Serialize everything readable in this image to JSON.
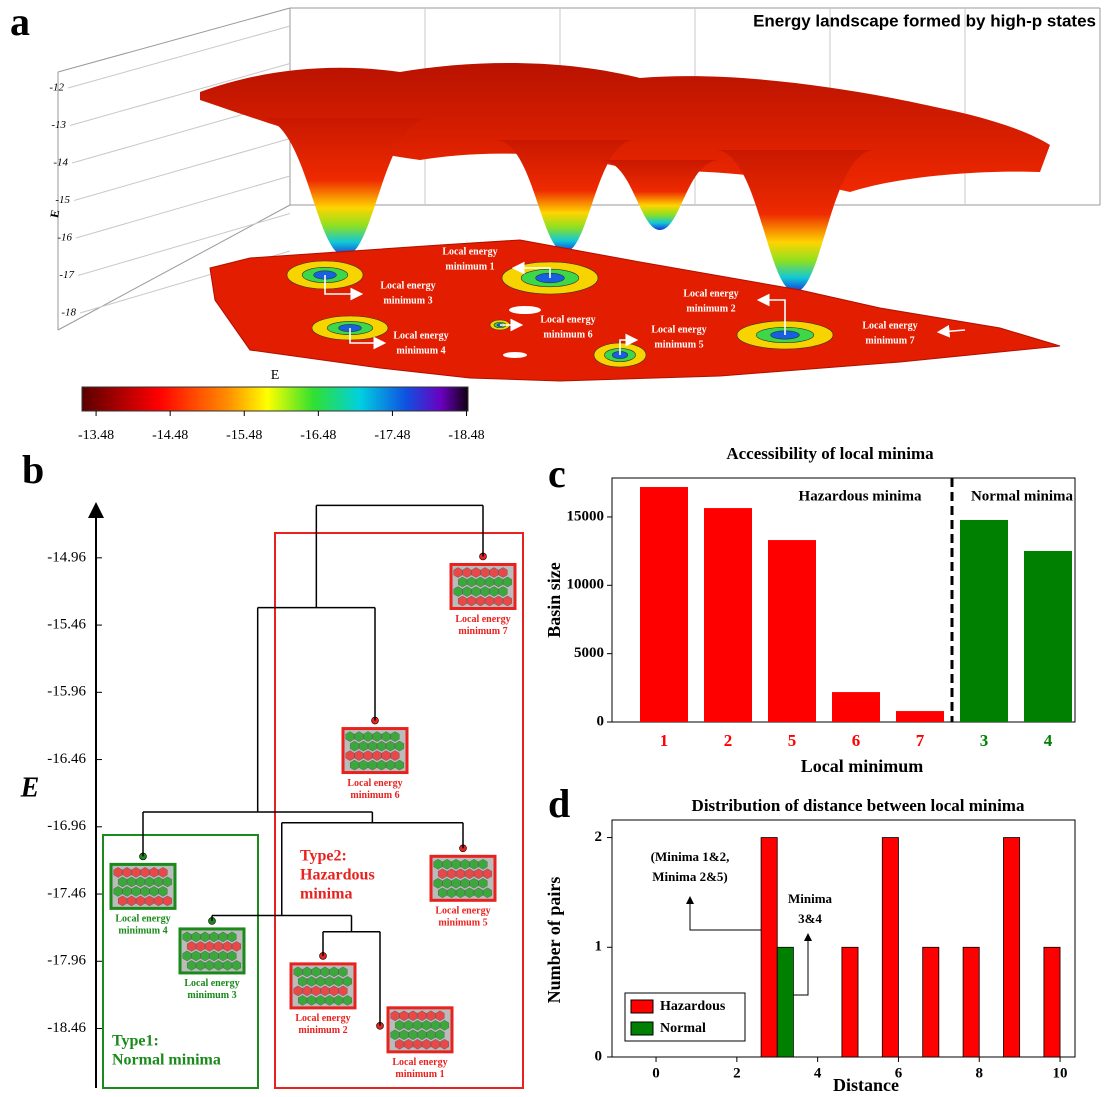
{
  "chart_data": [
    {
      "panel": "a",
      "type": "surface",
      "title": "Energy landscape formed by high-p states",
      "zlabel": "E",
      "zlim": [
        -18,
        -12
      ],
      "zticks": [
        -12,
        -13,
        -14,
        -15,
        -16,
        -17,
        -18
      ],
      "colorbar": {
        "label": "E",
        "lim": [
          -13.29,
          -18.5
        ],
        "ticks": [
          -13.48,
          -14.48,
          -15.48,
          -16.48,
          -17.48,
          -18.48
        ]
      },
      "annotations": [
        [
          "Local energy",
          "minimum 1"
        ],
        [
          "Local energy",
          "minimum 3"
        ],
        [
          "Local energy",
          "minimum 4"
        ],
        [
          "Local energy",
          "minimum 6"
        ],
        [
          "Local energy",
          "minimum 5"
        ],
        [
          "Local energy",
          "minimum 2"
        ],
        [
          "Local energy",
          "minimum 7"
        ]
      ]
    },
    {
      "panel": "b",
      "type": "dendrogram",
      "ylabel": "E",
      "ylim": [
        -18.88,
        -14.53
      ],
      "yticks": [
        -14.96,
        -15.46,
        -15.96,
        -16.46,
        -16.96,
        -17.46,
        -17.96,
        -18.46
      ],
      "groups": [
        {
          "label": [
            "Type1:",
            "Normal minima"
          ],
          "color": "#1a8a1a"
        },
        {
          "label": [
            "Type2:",
            "Hazardous",
            "minima"
          ],
          "color": "#e8231f"
        }
      ],
      "tree": {
        "e": -14.57,
        "children": [
          {
            "e": -15.33,
            "children": [
              {
                "e": -16.85,
                "children": [
                  {
                    "label": [
                      "Local energy",
                      "minimum 4"
                    ],
                    "e": -17.18,
                    "color": "#1a8a1a"
                  },
                  {
                    "e": -16.93,
                    "children": [
                      {
                        "e": -17.62,
                        "children": [
                          {
                            "label": [
                              "Local energy",
                              "minimum 3"
                            ],
                            "e": -17.66,
                            "color": "#1a8a1a"
                          },
                          {
                            "e": -17.74,
                            "children": [
                              {
                                "label": [
                                  "Local energy",
                                  "minimum 2"
                                ],
                                "e": -17.92,
                                "color": "#e8231f"
                              },
                              {
                                "label": [
                                  "Local energy",
                                  "minimum 1"
                                ],
                                "e": -18.44,
                                "color": "#e8231f"
                              }
                            ]
                          }
                        ]
                      },
                      {
                        "label": [
                          "Local energy",
                          "minimum 5"
                        ],
                        "e": -17.12,
                        "color": "#e8231f"
                      }
                    ]
                  }
                ]
              },
              {
                "label": [
                  "Local energy",
                  "minimum 6"
                ],
                "e": -16.17,
                "color": "#e8231f"
              }
            ]
          },
          {
            "label": [
              "Local energy",
              "minimum 7"
            ],
            "e": -14.95,
            "color": "#e8231f"
          }
        ]
      }
    },
    {
      "panel": "c",
      "type": "bar",
      "title": "Accessibility of local minima",
      "xlabel": "Local minimum",
      "ylabel": "Basin size",
      "categories": [
        "1",
        "2",
        "5",
        "6",
        "7",
        "3",
        "4"
      ],
      "values": [
        17190,
        15650,
        13310,
        2190,
        800,
        14780,
        12510
      ],
      "colors": [
        "#ff0000",
        "#ff0000",
        "#ff0000",
        "#ff0000",
        "#ff0000",
        "#008000",
        "#008000"
      ],
      "ylim": [
        0,
        17850
      ],
      "yticks": [
        0,
        5000,
        10000,
        15000
      ],
      "annotations": [
        "Hazardous minima",
        "Normal minima"
      ]
    },
    {
      "panel": "d",
      "type": "grouped-bar",
      "title": "Distribution of distance between local minima",
      "xlabel": "Distance",
      "ylabel": "Number of pairs",
      "x": [
        3,
        5,
        6,
        7,
        8,
        9,
        10
      ],
      "series": [
        {
          "name": "Hazardous",
          "color": "#ff0000",
          "values": [
            2,
            1,
            2,
            1,
            1,
            2,
            1
          ]
        },
        {
          "name": "Normal",
          "color": "#008000",
          "values": [
            1,
            null,
            null,
            null,
            null,
            null,
            null
          ]
        }
      ],
      "xlim": [
        -1.09,
        10.37
      ],
      "xticks": [
        0,
        2,
        4,
        6,
        8,
        10
      ],
      "ylim": [
        0,
        2.16
      ],
      "yticks": [
        0,
        1,
        2
      ],
      "legend": "lower-left",
      "annotations": [
        [
          "(Minima 1&2,",
          "Minima 2&5)"
        ],
        [
          "Minima",
          "3&4"
        ]
      ]
    }
  ]
}
